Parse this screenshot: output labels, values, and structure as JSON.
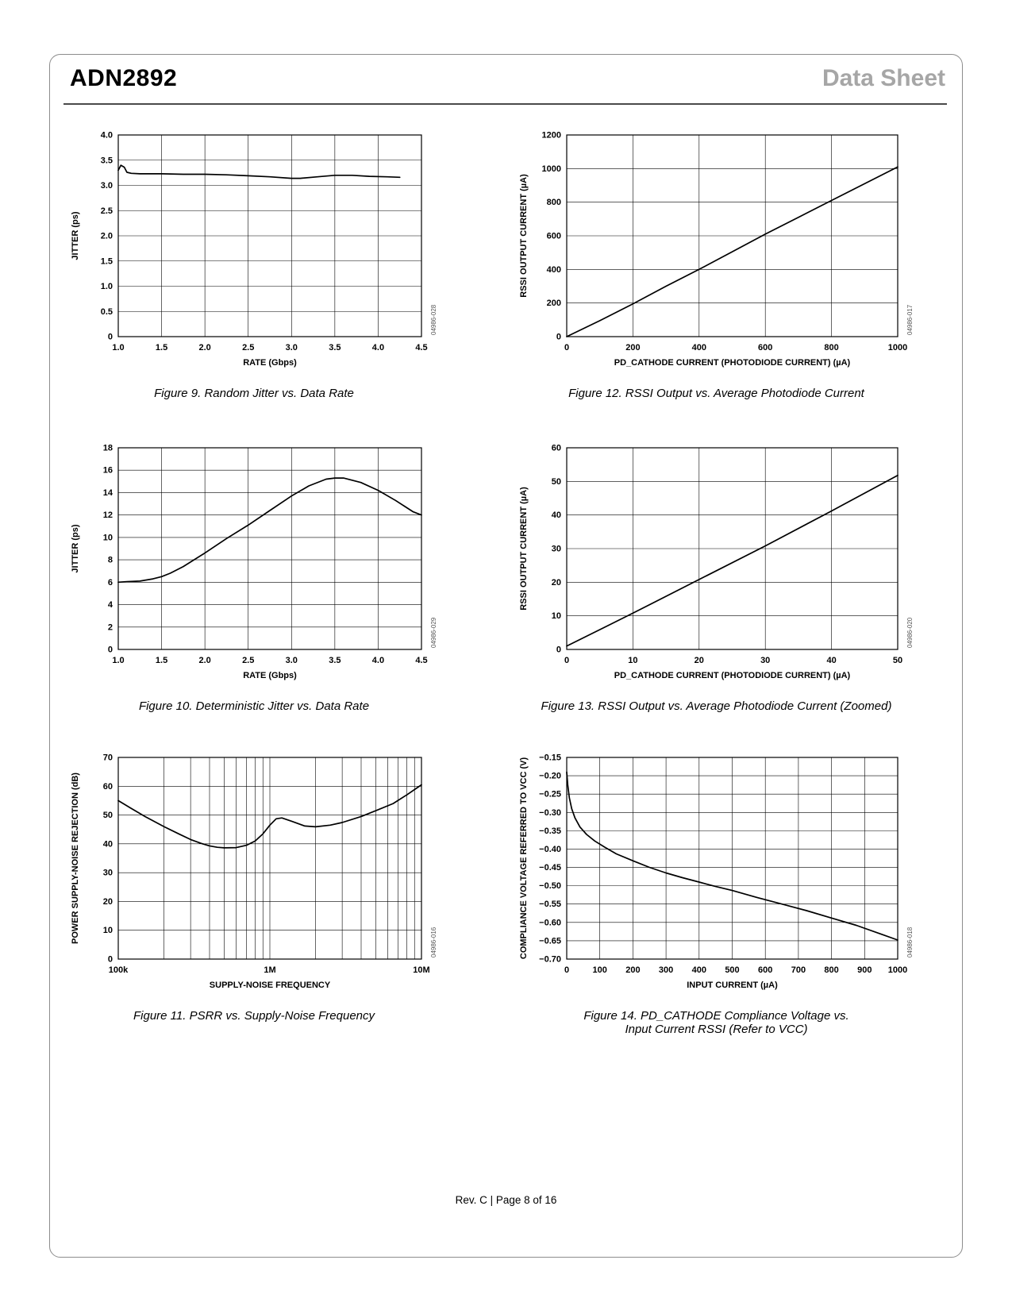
{
  "page": {
    "header": {
      "part": "ADN2892",
      "doc_type": "Data Sheet"
    },
    "footer": {
      "text": "Rev. C | Page 8 of 16"
    }
  },
  "chart_data": [
    {
      "id": "fig9",
      "type": "line",
      "caption": "Figure 9. Random Jitter vs. Data Rate",
      "watermark": "04986-028",
      "xlabel": "RATE (Gbps)",
      "ylabel": "JITTER (ps)",
      "xscale": "linear",
      "xlim": [
        1.0,
        4.5
      ],
      "ylim": [
        0,
        4.0
      ],
      "xticks": {
        "values": [
          1.0,
          1.5,
          2.0,
          2.5,
          3.0,
          3.5,
          4.0,
          4.5
        ],
        "labels": [
          "1.0",
          "1.5",
          "2.0",
          "2.5",
          "3.0",
          "3.5",
          "4.0",
          "4.5"
        ]
      },
      "yticks": {
        "values": [
          0,
          0.5,
          1.0,
          1.5,
          2.0,
          2.5,
          3.0,
          3.5,
          4.0
        ],
        "labels": [
          "0",
          "0.5",
          "1.0",
          "1.5",
          "2.0",
          "2.5",
          "3.0",
          "3.5",
          "4.0"
        ]
      },
      "series": [
        {
          "name": "random jitter",
          "x": [
            1.0,
            1.03,
            1.07,
            1.1,
            1.15,
            1.25,
            1.5,
            1.75,
            2.0,
            2.25,
            2.5,
            2.75,
            3.0,
            3.1,
            3.3,
            3.5,
            3.7,
            3.9,
            4.1,
            4.25
          ],
          "y": [
            3.3,
            3.4,
            3.36,
            3.26,
            3.24,
            3.23,
            3.23,
            3.22,
            3.22,
            3.21,
            3.19,
            3.17,
            3.14,
            3.14,
            3.17,
            3.2,
            3.2,
            3.18,
            3.17,
            3.16
          ]
        }
      ]
    },
    {
      "id": "fig12",
      "type": "line",
      "caption": "Figure 12. RSSI Output vs. Average Photodiode Current",
      "watermark": "04986-017",
      "xlabel": "PD_CATHODE CURRENT (PHOTODIODE CURRENT) (µA)",
      "ylabel": "RSSI OUTPUT CURRENT (µA)",
      "xscale": "linear",
      "xlim": [
        0,
        1000
      ],
      "ylim": [
        0,
        1200
      ],
      "xticks": {
        "values": [
          0,
          200,
          400,
          600,
          800,
          1000
        ],
        "labels": [
          "0",
          "200",
          "400",
          "600",
          "800",
          "1000"
        ]
      },
      "yticks": {
        "values": [
          0,
          200,
          400,
          600,
          800,
          1000,
          1200
        ],
        "labels": [
          "0",
          "200",
          "400",
          "600",
          "800",
          "1000",
          "1200"
        ]
      },
      "series": [
        {
          "name": "rssi output",
          "x": [
            0,
            100,
            200,
            300,
            400,
            500,
            600,
            700,
            800,
            900,
            1000
          ],
          "y": [
            0,
            95,
            195,
            300,
            400,
            505,
            610,
            710,
            810,
            910,
            1010
          ]
        }
      ]
    },
    {
      "id": "fig10",
      "type": "line",
      "caption": "Figure 10. Deterministic Jitter vs. Data Rate",
      "watermark": "04986-029",
      "xlabel": "RATE (Gbps)",
      "ylabel": "JITTER (ps)",
      "xscale": "linear",
      "xlim": [
        1.0,
        4.5
      ],
      "ylim": [
        0,
        18
      ],
      "xticks": {
        "values": [
          1.0,
          1.5,
          2.0,
          2.5,
          3.0,
          3.5,
          4.0,
          4.5
        ],
        "labels": [
          "1.0",
          "1.5",
          "2.0",
          "2.5",
          "3.0",
          "3.5",
          "4.0",
          "4.5"
        ]
      },
      "yticks": {
        "values": [
          0,
          2,
          4,
          6,
          8,
          10,
          12,
          14,
          16,
          18
        ],
        "labels": [
          "0",
          "2",
          "4",
          "6",
          "8",
          "10",
          "12",
          "14",
          "16",
          "18"
        ]
      },
      "series": [
        {
          "name": "deterministic jitter",
          "x": [
            1.0,
            1.1,
            1.25,
            1.4,
            1.5,
            1.6,
            1.75,
            2.0,
            2.25,
            2.5,
            2.75,
            3.0,
            3.2,
            3.4,
            3.5,
            3.6,
            3.8,
            4.0,
            4.2,
            4.4,
            4.5
          ],
          "y": [
            6.0,
            6.05,
            6.1,
            6.3,
            6.5,
            6.8,
            7.4,
            8.6,
            9.9,
            11.1,
            12.4,
            13.7,
            14.6,
            15.2,
            15.3,
            15.3,
            14.9,
            14.2,
            13.3,
            12.3,
            12.0
          ]
        }
      ]
    },
    {
      "id": "fig13",
      "type": "line",
      "caption": "Figure 13. RSSI Output vs. Average Photodiode Current (Zoomed)",
      "watermark": "04986-020",
      "xlabel": "PD_CATHODE CURRENT (PHOTODIODE CURRENT) (µA)",
      "ylabel": "RSSI OUTPUT CURRENT (µA)",
      "xscale": "linear",
      "xlim": [
        0,
        50
      ],
      "ylim": [
        0,
        60
      ],
      "xticks": {
        "values": [
          0,
          10,
          20,
          30,
          40,
          50
        ],
        "labels": [
          "0",
          "10",
          "20",
          "30",
          "40",
          "50"
        ]
      },
      "yticks": {
        "values": [
          0,
          10,
          20,
          30,
          40,
          50,
          60
        ],
        "labels": [
          "0",
          "10",
          "20",
          "30",
          "40",
          "50",
          "60"
        ]
      },
      "series": [
        {
          "name": "rssi output zoomed",
          "x": [
            0,
            10,
            20,
            30,
            40,
            50
          ],
          "y": [
            1.0,
            10.8,
            20.8,
            30.8,
            41.2,
            51.8
          ]
        }
      ]
    },
    {
      "id": "fig11",
      "type": "line",
      "caption": "Figure 11. PSRR vs. Supply-Noise Frequency",
      "watermark": "04986-016",
      "xlabel": "SUPPLY-NOISE FREQUENCY",
      "ylabel": "POWER SUPPLY-NOISE REJECTION (dB)",
      "xscale": "log",
      "xlim": [
        100000,
        10000000
      ],
      "ylim": [
        0,
        70
      ],
      "xticks": {
        "values": [
          100000,
          1000000,
          10000000
        ],
        "labels": [
          "100k",
          "1M",
          "10M"
        ]
      },
      "yticks": {
        "values": [
          0,
          10,
          20,
          30,
          40,
          50,
          60,
          70
        ],
        "labels": [
          "0",
          "10",
          "20",
          "30",
          "40",
          "50",
          "60",
          "70"
        ]
      },
      "series": [
        {
          "name": "psrr",
          "x": [
            100000,
            120000,
            150000,
            200000,
            250000,
            300000,
            350000,
            400000,
            450000,
            500000,
            600000,
            700000,
            800000,
            900000,
            1000000,
            1100000,
            1200000,
            1400000,
            1700000,
            2000000,
            2500000,
            3000000,
            4000000,
            5000000,
            6500000,
            8000000,
            10000000
          ],
          "y": [
            55,
            52.5,
            49.5,
            46,
            43.5,
            41.5,
            40.2,
            39.3,
            38.8,
            38.6,
            38.7,
            39.5,
            41,
            43.5,
            46.5,
            48.7,
            49,
            47.8,
            46.2,
            45.9,
            46.5,
            47.4,
            49.5,
            51.5,
            54,
            57,
            60.5
          ]
        }
      ]
    },
    {
      "id": "fig14",
      "type": "line",
      "caption": "Figure 14. PD_CATHODE Compliance Voltage vs.",
      "caption2": "Input Current RSSI (Refer to VCC)",
      "watermark": "04986-018",
      "xlabel": "INPUT CURRENT (µA)",
      "ylabel": "COMPLIANCE VOLTAGE REFERRED TO VCC (V)",
      "xscale": "linear",
      "xlim": [
        0,
        1000
      ],
      "ylim": [
        -0.7,
        -0.15
      ],
      "xticks": {
        "values": [
          0,
          100,
          200,
          300,
          400,
          500,
          600,
          700,
          800,
          900,
          1000
        ],
        "labels": [
          "0",
          "100",
          "200",
          "300",
          "400",
          "500",
          "600",
          "700",
          "800",
          "900",
          "1000"
        ]
      },
      "yticks": {
        "values": [
          -0.15,
          -0.2,
          -0.25,
          -0.3,
          -0.35,
          -0.4,
          -0.45,
          -0.5,
          -0.55,
          -0.6,
          -0.65,
          -0.7
        ],
        "labels": [
          "−0.15",
          "−0.20",
          "−0.25",
          "−0.30",
          "−0.35",
          "−0.40",
          "−0.45",
          "−0.50",
          "−0.55",
          "−0.60",
          "−0.65",
          "−0.70"
        ]
      },
      "series": [
        {
          "name": "compliance voltage",
          "x": [
            0,
            3,
            8,
            15,
            25,
            40,
            60,
            85,
            115,
            150,
            200,
            250,
            300,
            350,
            400,
            450,
            500,
            575,
            650,
            725,
            800,
            875,
            950,
            1000
          ],
          "y": [
            -0.19,
            -0.225,
            -0.26,
            -0.29,
            -0.315,
            -0.34,
            -0.36,
            -0.378,
            -0.395,
            -0.413,
            -0.432,
            -0.45,
            -0.465,
            -0.478,
            -0.49,
            -0.502,
            -0.513,
            -0.532,
            -0.55,
            -0.568,
            -0.588,
            -0.608,
            -0.632,
            -0.648
          ]
        }
      ]
    }
  ]
}
